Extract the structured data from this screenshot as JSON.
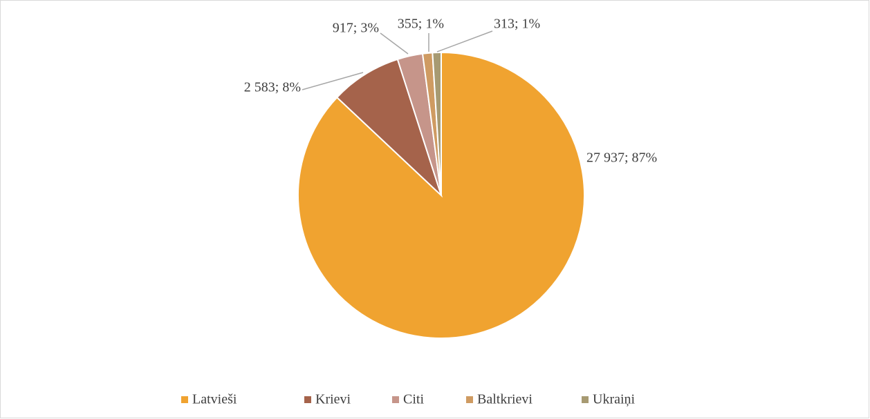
{
  "chart_data": {
    "type": "pie",
    "categories": [
      "Latvieši",
      "Krievi",
      "Citi",
      "Baltkrievi",
      "Ukraiņi"
    ],
    "values": [
      27937,
      2583,
      917,
      355,
      313
    ],
    "value_labels": [
      "27 937; 87%",
      "2 583; 8%",
      "917; 3%",
      "355; 1%",
      "313; 1%"
    ],
    "colors": [
      "#f0a330",
      "#a5634b",
      "#c6958a",
      "#cf9b62",
      "#a79a72"
    ],
    "legend": "bottom"
  }
}
